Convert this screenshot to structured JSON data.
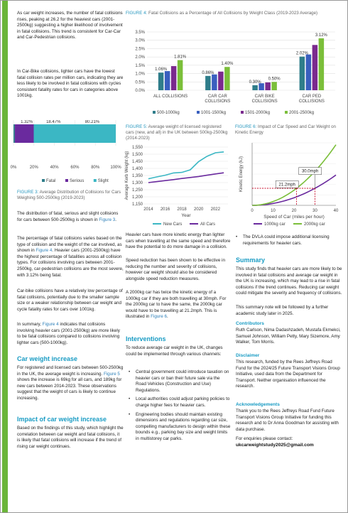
{
  "col1": {
    "p1": "As car weight increases, the number of fatal collisions rises, peaking at 26.2 for the heaviest cars (2001-2500kg) suggesting a higher likelihood of involvement in fatal collisions. This trend is consistent for Car-Car and Car-Pedestrian collisions.",
    "p2": "In Car-Bike collisions, lighter cars have the lowest fatal collision rates per million cars, indicating they are less likely to be involved in fatal collisions with cycles consistent fatality rates for cars in categories above 1001kg.",
    "fig3_caption_label": "FIGURE 3:",
    "fig3_caption_text": "Average Distribution of Collisions for Cars Weighing 500-2500kg (2019-2023)",
    "p3": "The distribution of fatal, serious and slight collisions for cars between 500-2500kg is shown in",
    "p3_link": "Figure 3",
    "p4a": "The percentage of fatal collisions varies based on the type of collision and the weight of the car involved, as shown in",
    "p4_link": "Figure 4",
    "p4b": ". Heavier cars (2001-2500kg) have the highest percentage of fatalities across all collision types. For collisions involving cars between 2001-2500kg, car-pedestrian collisions are the most severe, with 3.12% being fatal.",
    "p5": "Car-bike collisions have a relatively low percentage of fatal collisions, potentially due to the smaller sample size or a weaker relationship between car weight and cycle fatality rates for cars over 1001kg.",
    "p6a": "In summary,",
    "p6_link": "Figure 4",
    "p6b": "indicates that collisions involving heavier cars (2001-2500kg) are more likely to be fatal collisions compared to collisions involving lighter cars (500-1000kg).",
    "h_weight": "Car weight increase",
    "p7a": "For registered and licensed cars between 500-2500kg in the UK, the average weight is increasing.",
    "p7_link": "Figure 5",
    "p7b": "shows the increase is 69kg for all cars, and 189kg for new cars between 2014-2023. These observations suggest that the weight of cars is likely to continue increasing.",
    "h_impact": "Impact of car weight increase",
    "p8": "Based on the findings of this study, which highlight the correlation between car weight and fatal collisions, it is likely that fatal collisions will increase if the trend of rising car weight continues."
  },
  "fig4": {
    "caption_label": "FIGURE 4:",
    "caption_text": "Fatal Collisions as a Percentage of All Collisions by Weight Class (2019-2023 Average)"
  },
  "fig5": {
    "caption_label": "FIGURE 5:",
    "caption_text": "Average weight of licensed registered cars (new, and all) in the UK between 500kg-2500kg (2014-2023)"
  },
  "fig6": {
    "caption_label": "FIGURE 6:",
    "caption_text": "Impact of Car Speed and Car Weight on Kinetic Energy"
  },
  "col2": {
    "p1": "Heavier cars have more kinetic energy than lighter cars when travelling at the same speed and therefore have the potential to do more damage in a collision.",
    "p2": "Speed reduction has been shown to be effective in reducing the number and severity of collisions, however car weight should also be considered alongside speed reduction measures.",
    "p3a": "A 2000kg car has twice the kinetic energy of a 1000kg car if they are both travelling at 30mph. For the 2000kg car to have the same, the 2000kg car would have to be travelling at 21.2mph. This is illustrated in",
    "p3_link": "Figure 6",
    "h_interventions": "Interventions",
    "p4": "To reduce average car weight in the UK, changes could be implemented through various channels:",
    "bullets": [
      "Central government could introduce taxation on heavier cars or ban their future sale via the Road Vehicles (Construction and Use) Regulations.",
      "Local authorities could adjust parking policies to charge higher fees for heavier cars.",
      "Engineering bodies should maintain existing dimensions and regulations regarding car size, compelling manufacturers to design within these bounds e.g., parking bay size and weight limits in multistorey car parks."
    ]
  },
  "col3": {
    "bullet": "The DVLA could impose additional licensing requirements for heavier cars.",
    "h_summary": "Summary",
    "p1": "This study finds that heavier cars are more likely to be involved in fatal collisions and average car weight in the UK is increasing, which may lead to a rise in fatal collisions if the trend continues. Reducing car weight could mitigate the severity and frequency of collisions.",
    "p2": "This summary note will be followed by a further academic study later in 2025.",
    "h_contributors": "Contributors",
    "contributors": "Ruth Carlson, Nima Dadashzadeh, Mustafa Ekmekci, Samuel Johnson, William Petty, Mary Sizemore, Amy Walker, Tom Morris.",
    "h_disclaimer": "Disclaimer",
    "disclaimer": "This research, funded by the Rees Jeffreys Road Fund for the 2024/25 Future Transport Visions Group Initiative, used data from the Department for Transport. Neither organisation influenced the research.",
    "h_ack": "Acknowledgements",
    "ack": "Thank you to the Rees Jeffreys Road Fund Future Transport Visions Group Initiative for funding this research and to Dr Anna Goodman for assisting with data purchase.",
    "enquiries": "For enquiries please contact:",
    "email": "ukcarweightstudy2025@gmail.com"
  },
  "chart_data": [
    {
      "id": "figure3",
      "type": "bar",
      "orientation": "horizontal-stacked",
      "series": [
        {
          "name": "Fatal",
          "value": 1.32,
          "label": "1.32%",
          "color": "#2f7d8a"
        },
        {
          "name": "Serious",
          "value": 18.47,
          "label": "18.47%",
          "color": "#6a2a9e"
        },
        {
          "name": "Slight",
          "value": 80.21,
          "label": "80.21%",
          "color": "#3bb7c4"
        }
      ],
      "xlim": [
        0,
        100
      ],
      "xticks": [
        "0%",
        "20%",
        "40%",
        "60%",
        "80%",
        "100%"
      ],
      "legend": "bottom"
    },
    {
      "id": "figure4",
      "type": "bar",
      "categories": [
        "ALL COLLISIONS",
        "CAR CAR COLLISIONS",
        "CAR BIKE COLLISIONS",
        "CAR PED COLLISIONS"
      ],
      "series": [
        {
          "name": "500-1000kg",
          "color": "#2f7d8a",
          "values": [
            1.06,
            0.86,
            0.3,
            2.02
          ]
        },
        {
          "name": "1001-1500kg",
          "color": "#3a5fbf",
          "values": [
            1.15,
            0.95,
            0.42,
            2.15
          ]
        },
        {
          "name": "1501-2000kg",
          "color": "#7a2a8e",
          "values": [
            1.45,
            1.12,
            0.47,
            2.72
          ]
        },
        {
          "name": "2001-2500kg",
          "color": "#7bbf3a",
          "values": [
            1.81,
            1.4,
            0.5,
            3.12
          ]
        }
      ],
      "labels_shown": {
        "ALL COLLISIONS": [
          "1.06%",
          "1.81%"
        ],
        "CAR CAR COLLISIONS": [
          "0.86%",
          "1.40%"
        ],
        "CAR BIKE COLLISIONS": [
          "0.30%",
          "0.50%"
        ],
        "CAR PED COLLISIONS": [
          "2.02%",
          "3.12%"
        ]
      },
      "ylim": [
        0,
        3.5
      ],
      "yticks": [
        "0.0%",
        "0.5%",
        "1.0%",
        "1.5%",
        "2.0%",
        "2.5%",
        "3.0%",
        "3.5%"
      ],
      "legend": "bottom"
    },
    {
      "id": "figure5",
      "type": "line",
      "x": [
        2014,
        2015,
        2016,
        2017,
        2018,
        2019,
        2020,
        2021,
        2022,
        2023
      ],
      "series": [
        {
          "name": "New Cars",
          "color": "#3bb7c4",
          "values": [
            1327,
            1340,
            1352,
            1368,
            1372,
            1390,
            1448,
            1485,
            1510,
            1516
          ]
        },
        {
          "name": "All Cars",
          "color": "#6a2a9e",
          "values": [
            1300,
            1307,
            1314,
            1321,
            1329,
            1336,
            1343,
            1352,
            1361,
            1369
          ]
        }
      ],
      "xticks": [
        "2014",
        "2016",
        "2018",
        "2020",
        "2022"
      ],
      "yticks": [
        "1,150",
        "1,200",
        "1,250",
        "1,300",
        "1,350",
        "1,400",
        "1,450",
        "1,500",
        "1,550"
      ],
      "ylim": [
        1150,
        1550
      ],
      "xlabel": "Year",
      "ylabel": "Average Kerb Weight (kg)",
      "legend": "bottom"
    },
    {
      "id": "figure6",
      "type": "line",
      "x": [
        0,
        10,
        20,
        30,
        40
      ],
      "series": [
        {
          "name": "1000kg car",
          "color": "#6a2a9e",
          "values": [
            0,
            10,
            40,
            90,
            160
          ]
        },
        {
          "name": "2000kg car",
          "color": "#7bbf3a",
          "values": [
            0,
            20,
            80,
            180,
            320
          ]
        }
      ],
      "annotations": [
        "30.0mph",
        "21.2mph"
      ],
      "xticks": [
        "0",
        "10",
        "20",
        "30",
        "40"
      ],
      "xlabel": "Speed of Car (miles per hour)",
      "ylabel": "Kinetic Energy (kJ)",
      "legend": "bottom"
    }
  ]
}
